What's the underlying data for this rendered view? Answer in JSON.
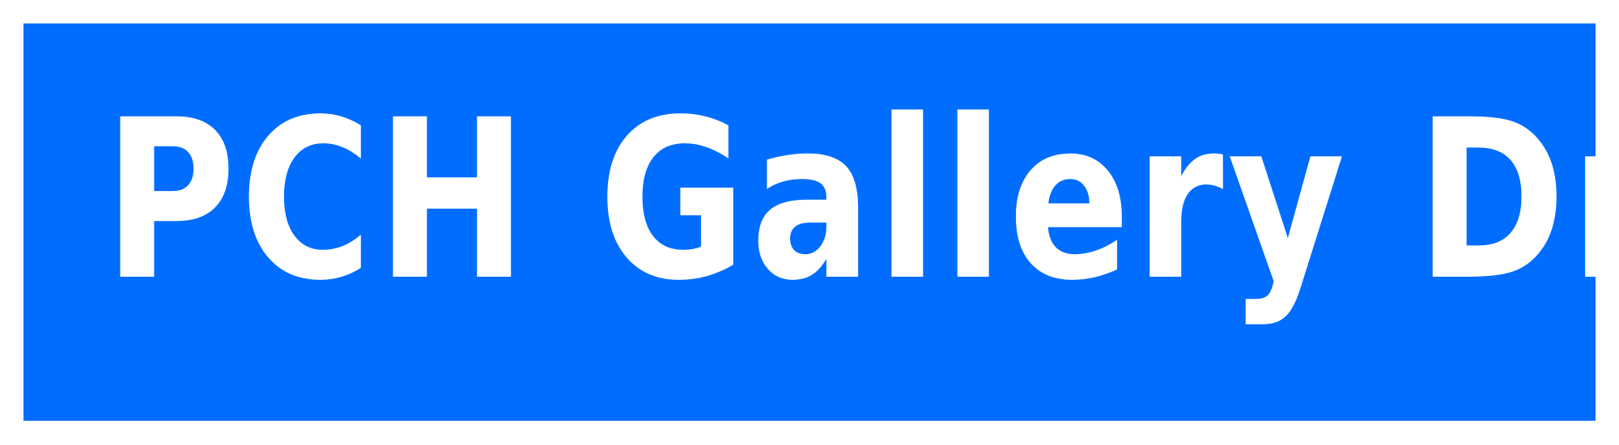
{
  "sign": {
    "text": "PCH Gallery Dr.",
    "background_color": "#006dfe",
    "text_color": "#ffffff",
    "frame_color": "#ffffff"
  }
}
